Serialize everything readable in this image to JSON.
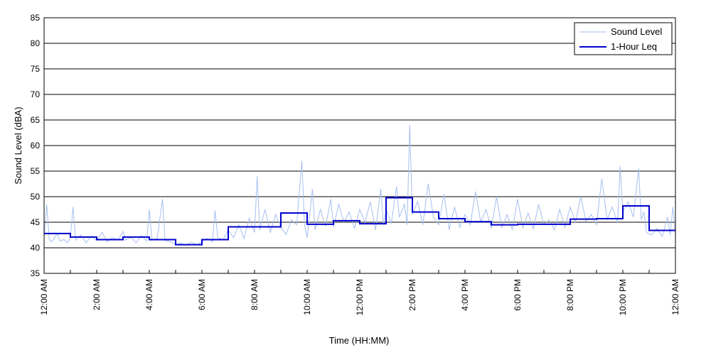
{
  "chart_data": {
    "type": "line",
    "title": "",
    "xlabel": "Time (HH:MM)",
    "ylabel": "Sound Level (dBA)",
    "xlim": [
      0,
      24
    ],
    "ylim": [
      35,
      85
    ],
    "y_ticks": [
      35,
      40,
      45,
      50,
      55,
      60,
      65,
      70,
      75,
      80,
      85
    ],
    "x_ticks": [
      {
        "hour": 0,
        "label": "12:00 AM"
      },
      {
        "hour": 2,
        "label": "2:00 AM"
      },
      {
        "hour": 4,
        "label": "4:00 AM"
      },
      {
        "hour": 6,
        "label": "6:00 AM"
      },
      {
        "hour": 8,
        "label": "8:00 AM"
      },
      {
        "hour": 10,
        "label": "10:00 AM"
      },
      {
        "hour": 12,
        "label": "12:00 PM"
      },
      {
        "hour": 14,
        "label": "2:00 PM"
      },
      {
        "hour": 16,
        "label": "4:00 PM"
      },
      {
        "hour": 18,
        "label": "6:00 PM"
      },
      {
        "hour": 20,
        "label": "8:00 PM"
      },
      {
        "hour": 22,
        "label": "10:00 PM"
      },
      {
        "hour": 24,
        "label": "12:00 AM"
      }
    ],
    "grid": "horizontal",
    "legend_position": "top-right",
    "series": [
      {
        "name": "Sound Level",
        "color": "#a6bff0",
        "style": "thin",
        "points": [
          [
            0.0,
            41.8
          ],
          [
            0.1,
            48.5
          ],
          [
            0.2,
            41.5
          ],
          [
            0.3,
            41.2
          ],
          [
            0.5,
            42.8
          ],
          [
            0.6,
            41.3
          ],
          [
            0.75,
            41.6
          ],
          [
            0.9,
            41.0
          ],
          [
            1.0,
            42.0
          ],
          [
            1.1,
            48.0
          ],
          [
            1.2,
            41.5
          ],
          [
            1.4,
            42.5
          ],
          [
            1.6,
            41.0
          ],
          [
            1.8,
            42.3
          ],
          [
            2.0,
            41.4
          ],
          [
            2.2,
            43.0
          ],
          [
            2.4,
            41.2
          ],
          [
            2.6,
            42.0
          ],
          [
            2.8,
            41.5
          ],
          [
            3.0,
            43.2
          ],
          [
            3.1,
            41.5
          ],
          [
            3.3,
            42.1
          ],
          [
            3.5,
            41.0
          ],
          [
            3.7,
            42.4
          ],
          [
            3.9,
            41.3
          ],
          [
            4.0,
            47.5
          ],
          [
            4.1,
            41.5
          ],
          [
            4.3,
            41.8
          ],
          [
            4.5,
            49.5
          ],
          [
            4.6,
            41.4
          ],
          [
            4.8,
            41.2
          ],
          [
            5.0,
            40.6
          ],
          [
            5.2,
            40.9
          ],
          [
            5.4,
            40.5
          ],
          [
            5.6,
            41.1
          ],
          [
            5.8,
            40.6
          ],
          [
            6.0,
            41.2
          ],
          [
            6.2,
            41.8
          ],
          [
            6.4,
            41.2
          ],
          [
            6.5,
            47.3
          ],
          [
            6.6,
            42.0
          ],
          [
            6.8,
            41.5
          ],
          [
            7.0,
            43.5
          ],
          [
            7.2,
            42.0
          ],
          [
            7.4,
            44.5
          ],
          [
            7.6,
            41.8
          ],
          [
            7.8,
            45.8
          ],
          [
            8.0,
            43.0
          ],
          [
            8.1,
            54.0
          ],
          [
            8.2,
            43.5
          ],
          [
            8.4,
            47.5
          ],
          [
            8.6,
            43.0
          ],
          [
            8.8,
            46.5
          ],
          [
            9.0,
            44.0
          ],
          [
            9.2,
            42.6
          ],
          [
            9.4,
            45.5
          ],
          [
            9.6,
            44.5
          ],
          [
            9.8,
            57.0
          ],
          [
            9.9,
            44.5
          ],
          [
            10.0,
            42.0
          ],
          [
            10.2,
            51.5
          ],
          [
            10.3,
            43.5
          ],
          [
            10.5,
            47.5
          ],
          [
            10.7,
            44.2
          ],
          [
            10.9,
            49.5
          ],
          [
            11.0,
            44.0
          ],
          [
            11.2,
            48.5
          ],
          [
            11.4,
            45.0
          ],
          [
            11.6,
            47.0
          ],
          [
            11.8,
            43.8
          ],
          [
            12.0,
            47.5
          ],
          [
            12.2,
            45.0
          ],
          [
            12.4,
            49.0
          ],
          [
            12.6,
            43.5
          ],
          [
            12.8,
            51.5
          ],
          [
            12.9,
            44.5
          ],
          [
            13.0,
            47.5
          ],
          [
            13.2,
            44.8
          ],
          [
            13.4,
            52.0
          ],
          [
            13.5,
            46.0
          ],
          [
            13.7,
            48.5
          ],
          [
            13.8,
            44.5
          ],
          [
            13.9,
            64.0
          ],
          [
            14.0,
            46.5
          ],
          [
            14.2,
            49.0
          ],
          [
            14.4,
            44.5
          ],
          [
            14.6,
            52.5
          ],
          [
            14.8,
            46.0
          ],
          [
            15.0,
            44.5
          ],
          [
            15.2,
            50.5
          ],
          [
            15.4,
            43.5
          ],
          [
            15.6,
            48.0
          ],
          [
            15.8,
            44.0
          ],
          [
            16.0,
            46.5
          ],
          [
            16.2,
            44.5
          ],
          [
            16.4,
            51.0
          ],
          [
            16.6,
            45.0
          ],
          [
            16.8,
            47.5
          ],
          [
            17.0,
            43.8
          ],
          [
            17.2,
            50.0
          ],
          [
            17.4,
            44.0
          ],
          [
            17.6,
            46.5
          ],
          [
            17.8,
            43.5
          ],
          [
            18.0,
            49.5
          ],
          [
            18.2,
            44.0
          ],
          [
            18.4,
            46.8
          ],
          [
            18.6,
            43.7
          ],
          [
            18.8,
            48.5
          ],
          [
            19.0,
            44.5
          ],
          [
            19.2,
            45.5
          ],
          [
            19.4,
            43.5
          ],
          [
            19.6,
            47.5
          ],
          [
            19.8,
            44.0
          ],
          [
            20.0,
            48.0
          ],
          [
            20.2,
            45.0
          ],
          [
            20.4,
            50.0
          ],
          [
            20.6,
            45.2
          ],
          [
            20.8,
            46.5
          ],
          [
            21.0,
            44.5
          ],
          [
            21.2,
            53.5
          ],
          [
            21.4,
            45.5
          ],
          [
            21.6,
            48.0
          ],
          [
            21.8,
            44.8
          ],
          [
            21.9,
            56.0
          ],
          [
            22.0,
            47.0
          ],
          [
            22.2,
            49.0
          ],
          [
            22.4,
            46.0
          ],
          [
            22.6,
            55.5
          ],
          [
            22.7,
            45.5
          ],
          [
            22.8,
            47.0
          ],
          [
            22.9,
            43.0
          ],
          [
            23.1,
            42.5
          ],
          [
            23.3,
            43.8
          ],
          [
            23.5,
            42.2
          ],
          [
            23.7,
            46.0
          ],
          [
            23.8,
            42.5
          ],
          [
            23.9,
            48.0
          ],
          [
            24.0,
            42.5
          ]
        ]
      },
      {
        "name": "1-Hour Leq",
        "color": "#0000cc",
        "style": "step",
        "hourly_values": [
          42.8,
          42.1,
          41.6,
          42.1,
          41.6,
          40.6,
          41.6,
          44.1,
          44.1,
          46.8,
          44.6,
          45.3,
          44.7,
          49.8,
          47.0,
          45.7,
          45.1,
          44.5,
          44.6,
          44.6,
          45.6,
          45.7,
          48.2,
          43.4
        ]
      }
    ]
  }
}
